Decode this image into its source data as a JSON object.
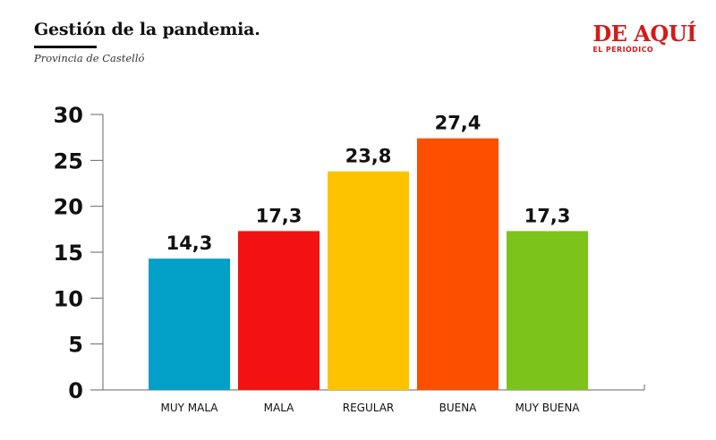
{
  "header": {
    "title": "Gestión de la pandemia.",
    "subtitle": "Provincia de Castelló"
  },
  "logo": {
    "name": "DE AQUÍ",
    "sub": "EL PERIÓDICO"
  },
  "chart_data": {
    "type": "bar",
    "categories": [
      "MUY MALA",
      "MALA",
      "REGULAR",
      "BUENA",
      "MUY BUENA"
    ],
    "values": [
      14.3,
      17.3,
      23.8,
      27.4,
      17.3
    ],
    "value_labels": [
      "14,3",
      "17,3",
      "23,8",
      "27,4",
      "17,3"
    ],
    "colors": [
      "#03a0c8",
      "#f21212",
      "#fdc300",
      "#fc4f00",
      "#7cc31c"
    ],
    "yticks": [
      "0",
      "5",
      "10",
      "15",
      "20",
      "25",
      "30"
    ],
    "ylim": [
      0,
      30
    ],
    "grid": false,
    "legend": "none"
  }
}
